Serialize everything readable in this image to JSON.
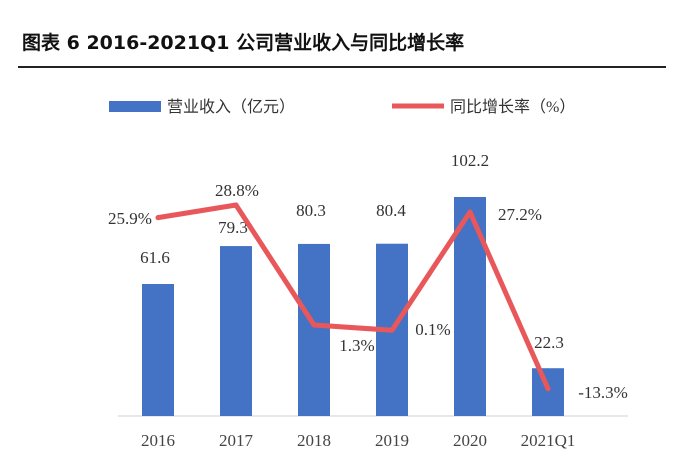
{
  "figure": {
    "title": "图表 6 2016-2021Q1 公司营业收入与同比增长率"
  },
  "chart_data": {
    "type": "bar",
    "categories": [
      "2016",
      "2017",
      "2018",
      "2019",
      "2020",
      "2021Q1"
    ],
    "legend_position": "top",
    "grid": false,
    "series": [
      {
        "name": "营业收入（亿元）",
        "type": "bar",
        "axis": "left",
        "color": "#4472C4",
        "values": [
          61.6,
          79.3,
          80.3,
          80.4,
          102.2,
          22.3
        ],
        "labels": [
          "61.6",
          "79.3",
          "80.3",
          "80.4",
          "102.2",
          "22.3"
        ]
      },
      {
        "name": "同比增长率（%）",
        "type": "line",
        "axis": "right",
        "color": "#E8575A",
        "values": [
          25.9,
          28.8,
          1.3,
          0.1,
          27.2,
          -13.3
        ],
        "labels": [
          "25.9%",
          "28.8%",
          "1.3%",
          "0.1%",
          "27.2%",
          "-13.3%"
        ]
      }
    ],
    "ylim_left": [
      0,
      120
    ],
    "ylim_right": [
      -20,
      45
    ]
  }
}
